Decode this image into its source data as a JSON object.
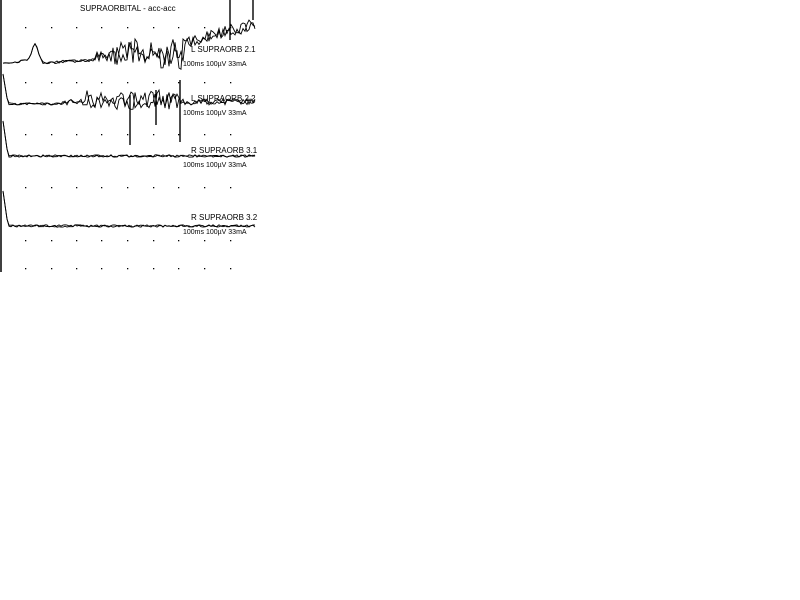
{
  "chart_data": {
    "type": "line",
    "title": "SUPRAORBITAL - acc-acc",
    "grid": true,
    "traces": [
      {
        "label": "L SUPRAORB 2.1",
        "params": "100ms 100µV 33mA",
        "overlay_count": 2,
        "activity": "large",
        "has_early_peak": true
      },
      {
        "label": "L SUPRAORB 2.2",
        "params": "100ms 100µV 33mA",
        "overlay_count": 2,
        "activity": "medium",
        "has_early_peak": false
      },
      {
        "label": "R SUPRAORB 3.1",
        "params": "100ms 100µV 33mA",
        "overlay_count": 2,
        "activity": "flat",
        "has_early_peak": false
      },
      {
        "label": "R SUPRAORB 3.2",
        "params": "100ms 100µV 33mA",
        "overlay_count": 2,
        "activity": "flat",
        "has_early_peak": false
      }
    ],
    "colors": {
      "trace": "#000000",
      "background": "#ffffff"
    }
  }
}
